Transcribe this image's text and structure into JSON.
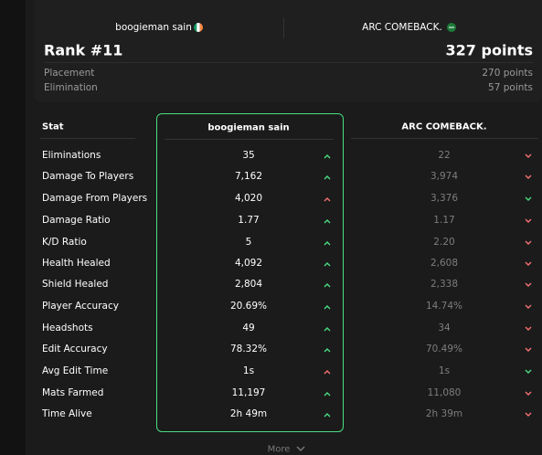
{
  "header": {
    "player1": "boogieman sain",
    "player2": "ARC COMEBACK.",
    "rank": "Rank #11",
    "points": "327 points",
    "breakdown": [
      {
        "label": "Placement",
        "value": "270 points"
      },
      {
        "label": "Elimination",
        "value": "57 points"
      }
    ]
  },
  "table": {
    "columns": [
      "Stat",
      "boogieman sain",
      "ARC COMEBACK."
    ],
    "rows": [
      [
        "Eliminations",
        "35",
        "22"
      ],
      [
        "Damage To Players",
        "7,162",
        "3,974"
      ],
      [
        "Damage From Players",
        "4,020",
        "3,376"
      ],
      [
        "Damage Ratio",
        "1.77",
        "1.17"
      ],
      [
        "K/D Ratio",
        "5",
        "2.20"
      ],
      [
        "Health Healed",
        "4,092",
        "2,608"
      ],
      [
        "Shield Healed",
        "2,804",
        "2,338"
      ],
      [
        "Player Accuracy",
        "20.69%",
        "14.74%"
      ],
      [
        "Headshots",
        "49",
        "34"
      ],
      [
        "Edit Accuracy",
        "78.32%",
        "70.49%"
      ],
      [
        "Avg Edit Time",
        "1s",
        "1s"
      ],
      [
        "Mats Farmed",
        "11,197",
        "11,080"
      ],
      [
        "Time Alive",
        "2h 49m",
        "2h 39m"
      ]
    ]
  },
  "footer": {
    "more": "More"
  }
}
